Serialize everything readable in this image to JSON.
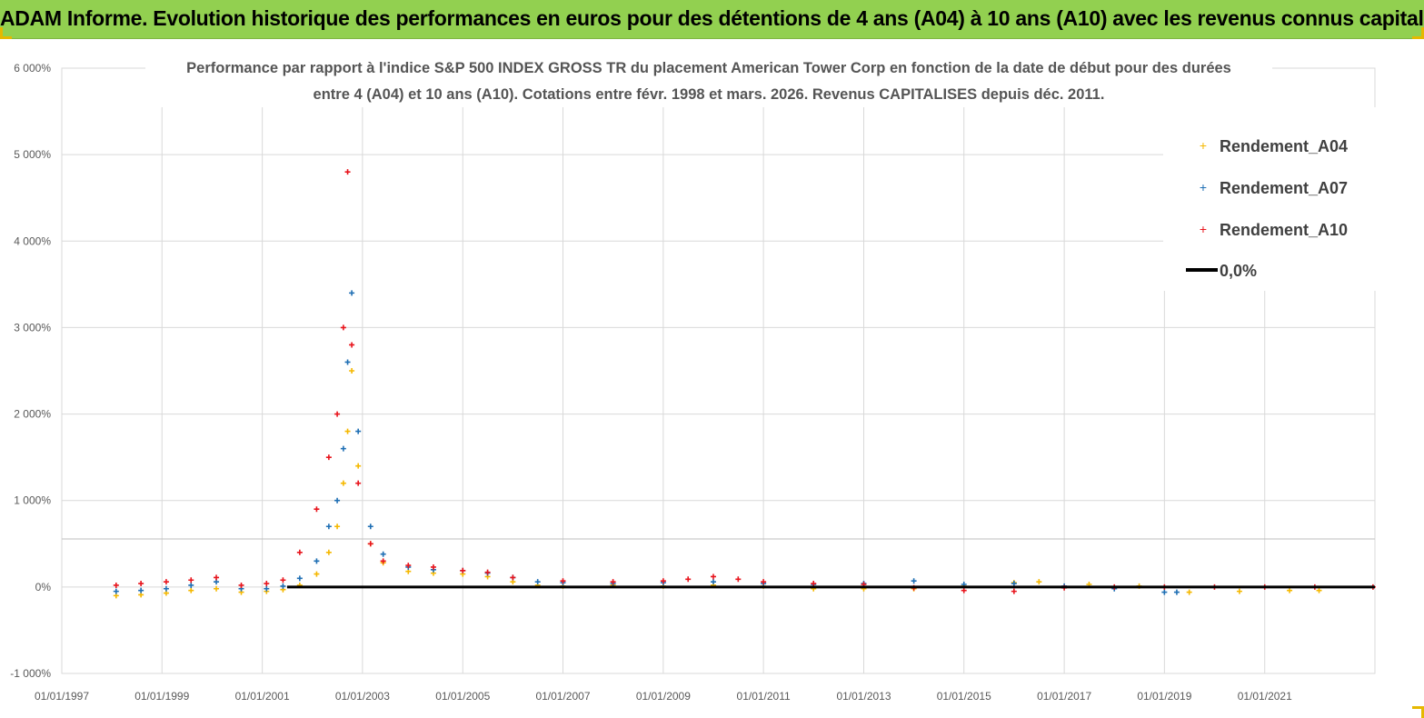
{
  "banner": {
    "title": "ADAM Informe. Evolution historique des performances en euros pour des détentions de 4 ans (A04) à 10 ans (A10) avec les revenus connus capitalisés"
  },
  "colors": {
    "banner_bg": "#92d050",
    "series_A04": "#f5b800",
    "series_A07": "#1f6fb4",
    "series_A10": "#e8141c",
    "zero_line": "#000000"
  },
  "chart_data": {
    "type": "scatter",
    "title_line1": "Performance par rapport à l'indice S&P 500 INDEX GROSS TR  du placement American Tower Corp en fonction de la date de début pour des durées",
    "title_line2": "entre 4 (A04) et 10 ans (A10). Cotations entre févr. 1998 et mars. 2026. Revenus CAPITALISES depuis déc. 2011.",
    "xlabel": "",
    "ylabel": "",
    "x_range": [
      "1997-01-01",
      "2023-03-15"
    ],
    "ylim": [
      -1000,
      6000
    ],
    "y_ticks": [
      -1000,
      0,
      1000,
      2000,
      3000,
      4000,
      5000,
      6000
    ],
    "y_tick_labels": [
      "-1 000%",
      "0%",
      "1 000%",
      "2 000%",
      "3 000%",
      "4 000%",
      "5 000%",
      "6 000%"
    ],
    "x_ticks": [
      "1997-01-01",
      "1999-01-01",
      "2001-01-01",
      "2003-01-01",
      "2005-01-01",
      "2007-01-01",
      "2009-01-01",
      "2011-01-01",
      "2013-01-01",
      "2015-01-01",
      "2017-01-01",
      "2019-01-01",
      "2021-01-01"
    ],
    "x_tick_labels": [
      "01/01/1997",
      "01/01/1999",
      "01/01/2001",
      "01/01/2003",
      "01/01/2005",
      "01/01/2007",
      "01/01/2009",
      "01/01/2011",
      "01/01/2013",
      "01/01/2015",
      "01/01/2017",
      "01/01/2019",
      "01/01/2021"
    ],
    "grid": "vertical-and-horizontal",
    "legend_position": "top-right",
    "legend": [
      "Rendement_A04",
      "Rendement_A07",
      "Rendement_A10",
      "0,0%"
    ],
    "series": [
      {
        "name": "Rendement_A04",
        "x": [
          "1998-02-01",
          "1998-08-01",
          "1999-02-01",
          "1999-08-01",
          "2000-02-01",
          "2000-08-01",
          "2001-02-01",
          "2001-06-01",
          "2001-10-01",
          "2002-02-01",
          "2002-05-01",
          "2002-07-01",
          "2002-08-15",
          "2002-09-15",
          "2002-10-15",
          "2002-12-01",
          "2003-03-01",
          "2003-06-01",
          "2003-12-01",
          "2004-06-01",
          "2005-01-01",
          "2005-07-01",
          "2006-01-01",
          "2006-07-01",
          "2007-01-01",
          "2008-01-01",
          "2009-01-01",
          "2010-01-01",
          "2011-01-01",
          "2012-01-01",
          "2013-01-01",
          "2014-01-01",
          "2015-01-01",
          "2016-01-01",
          "2016-07-01",
          "2017-07-01",
          "2018-07-01",
          "2019-07-01",
          "2020-07-01",
          "2021-07-01",
          "2022-02-01"
        ],
        "y": [
          -100,
          -90,
          -70,
          -40,
          -20,
          -60,
          -50,
          -30,
          20,
          150,
          400,
          700,
          1200,
          1800,
          2500,
          1400,
          500,
          280,
          180,
          160,
          150,
          120,
          60,
          20,
          10,
          20,
          10,
          20,
          10,
          -20,
          -20,
          -20,
          10,
          50,
          60,
          30,
          10,
          -60,
          -50,
          -40,
          -40
        ]
      },
      {
        "name": "Rendement_A07",
        "x": [
          "1998-02-01",
          "1998-08-01",
          "1999-02-01",
          "1999-08-01",
          "2000-02-01",
          "2000-08-01",
          "2001-02-01",
          "2001-06-01",
          "2001-10-01",
          "2002-02-01",
          "2002-05-01",
          "2002-07-01",
          "2002-08-15",
          "2002-09-15",
          "2002-10-15",
          "2002-12-01",
          "2003-03-01",
          "2003-06-01",
          "2003-12-01",
          "2004-06-01",
          "2005-01-01",
          "2005-07-01",
          "2006-01-01",
          "2006-07-01",
          "2007-01-01",
          "2008-01-01",
          "2009-01-01",
          "2010-01-01",
          "2011-01-01",
          "2012-01-01",
          "2013-01-01",
          "2014-01-01",
          "2015-01-01",
          "2016-01-01",
          "2017-01-01",
          "2018-01-01",
          "2019-01-01",
          "2019-04-01"
        ],
        "y": [
          -50,
          -40,
          -20,
          20,
          60,
          -20,
          -20,
          10,
          100,
          300,
          700,
          1000,
          1600,
          2600,
          3400,
          1800,
          700,
          380,
          230,
          200,
          190,
          160,
          110,
          60,
          50,
          40,
          50,
          60,
          40,
          30,
          40,
          70,
          30,
          40,
          10,
          -20,
          -60,
          -60
        ]
      },
      {
        "name": "Rendement_A10",
        "x": [
          "1998-02-01",
          "1998-08-01",
          "1999-02-01",
          "1999-08-01",
          "2000-02-01",
          "2000-08-01",
          "2001-02-01",
          "2001-06-01",
          "2001-10-01",
          "2002-02-01",
          "2002-05-01",
          "2002-07-01",
          "2002-08-15",
          "2002-09-15",
          "2002-10-15",
          "2002-12-01",
          "2003-03-01",
          "2003-06-01",
          "2003-12-01",
          "2004-06-01",
          "2005-01-01",
          "2005-07-01",
          "2006-01-01",
          "2007-01-01",
          "2008-01-01",
          "2009-01-01",
          "2009-07-01",
          "2010-01-01",
          "2010-07-01",
          "2011-01-01",
          "2012-01-01",
          "2013-01-01",
          "2014-01-01",
          "2015-01-01",
          "2016-01-01",
          "2017-01-01",
          "2018-01-01",
          "2019-01-01",
          "2020-01-01",
          "2021-01-01",
          "2022-01-01",
          "2023-03-01"
        ],
        "y": [
          20,
          40,
          60,
          80,
          110,
          20,
          40,
          80,
          400,
          900,
          1500,
          2000,
          3000,
          4800,
          2800,
          1200,
          500,
          300,
          250,
          230,
          190,
          170,
          110,
          70,
          60,
          70,
          90,
          120,
          90,
          60,
          40,
          30,
          -10,
          -40,
          -50,
          -10,
          0,
          0,
          0,
          0,
          0,
          0
        ]
      }
    ],
    "reference_line": {
      "name": "0,0%",
      "y": 0,
      "x_from": "2001-07-01",
      "x_to": "2023-03-15"
    }
  }
}
